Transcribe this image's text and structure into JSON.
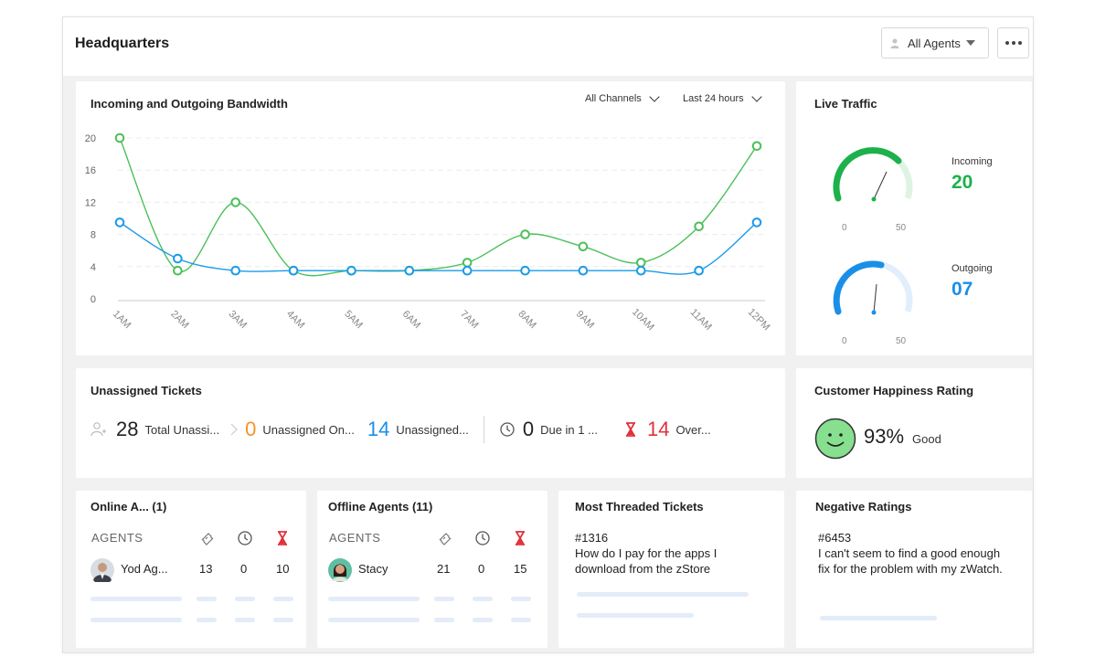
{
  "header": {
    "title": "Headquarters",
    "agents_filter": "All Agents"
  },
  "bandwidth": {
    "title": "Incoming and Outgoing Bandwidth",
    "channels_filter": "All Channels",
    "time_filter": "Last 24 hours"
  },
  "chart_data": {
    "type": "line",
    "categories": [
      "1AM",
      "2AM",
      "3AM",
      "4AM",
      "5AM",
      "6AM",
      "7AM",
      "8AM",
      "9AM",
      "10AM",
      "11AM",
      "12PM"
    ],
    "y_ticks": [
      0,
      4,
      8,
      12,
      16,
      20
    ],
    "ylim": [
      0,
      20
    ],
    "colors": {
      "green": "#4cbf5a",
      "blue": "#1a9be8"
    },
    "series": [
      {
        "values": [
          20,
          3.5,
          12,
          3.5,
          3.5,
          3.5,
          4.5,
          8,
          6.5,
          4.5,
          9,
          19
        ]
      },
      {
        "values": [
          9.5,
          5,
          3.5,
          3.5,
          3.5,
          3.5,
          3.5,
          3.5,
          3.5,
          3.5,
          3.5,
          9.5
        ]
      }
    ]
  },
  "live_traffic": {
    "title": "Live Traffic",
    "incoming": {
      "label": "Incoming",
      "value": "20",
      "min": "0",
      "max": "50",
      "color": "#1cb14b"
    },
    "outgoing": {
      "label": "Outgoing",
      "value": "07",
      "min": "0",
      "max": "50",
      "color": "#1a8fe8"
    }
  },
  "unassigned": {
    "title": "Unassigned Tickets",
    "stats": [
      {
        "value": "28",
        "label": "Total Unassi...",
        "color": "#222222"
      },
      {
        "value": "0",
        "label": "Unassigned On...",
        "color": "#f5922a"
      },
      {
        "value": "14",
        "label": "Unassigned...",
        "color": "#1a8fe8"
      },
      {
        "value": "0",
        "label": "Due in 1 ...",
        "color": "#222222"
      },
      {
        "value": "14",
        "label": "Over...",
        "color": "#e0323c"
      }
    ]
  },
  "happiness": {
    "title": "Customer Happiness Rating",
    "percent": "93%",
    "label": "Good"
  },
  "online_agents": {
    "title": "Online A... (1)",
    "column_header": "AGENTS",
    "agents": [
      {
        "name": "Yod Ag...",
        "tickets": "13",
        "time": "0",
        "overdue": "10"
      }
    ]
  },
  "offline_agents": {
    "title": "Offline Agents (11)",
    "column_header": "AGENTS",
    "agents": [
      {
        "name": "Stacy",
        "tickets": "21",
        "time": "0",
        "overdue": "15"
      }
    ]
  },
  "most_threaded": {
    "title": "Most Threaded Tickets",
    "ticket_id": "#1316",
    "ticket_text": "How do I pay for the apps I download from the zStore"
  },
  "negative_ratings": {
    "title": "Negative Ratings",
    "ticket_id": "#6453",
    "ticket_text": "I can't seem to find a good enough fix for the problem with my zWatch."
  }
}
